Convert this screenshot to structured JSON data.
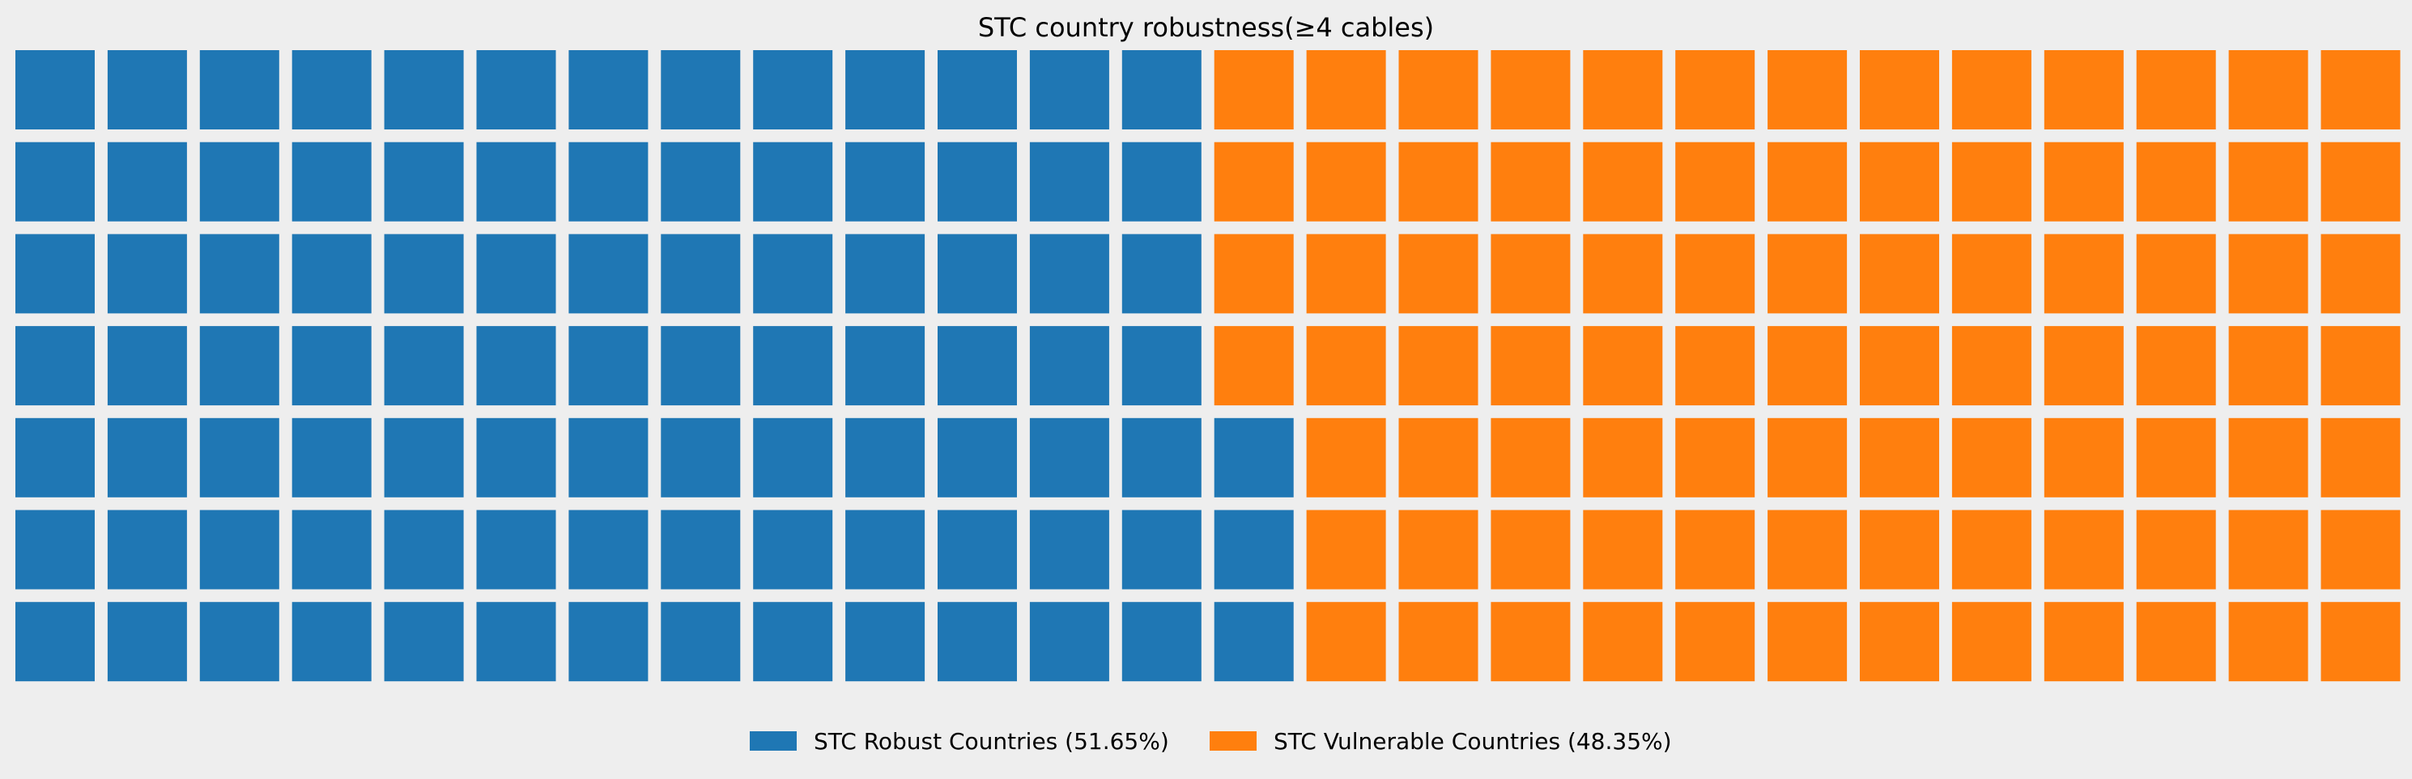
{
  "chart_data": {
    "type": "waffle",
    "title": "STC country robustness(≥4 cables)",
    "rows": 7,
    "columns": 26,
    "fill_order": "column-major, bottom-to-top, left-to-right",
    "series": [
      {
        "name": "STC Robust Countries (51.65%)",
        "percent": 51.65,
        "cells": 94,
        "color": "#1f77b4"
      },
      {
        "name": "STC Vulnerable Countries (48.35%)",
        "percent": 48.35,
        "cells": 88,
        "color": "#ff7f0e"
      }
    ],
    "legend_position": "bottom-center",
    "background": "#eeeeee"
  }
}
